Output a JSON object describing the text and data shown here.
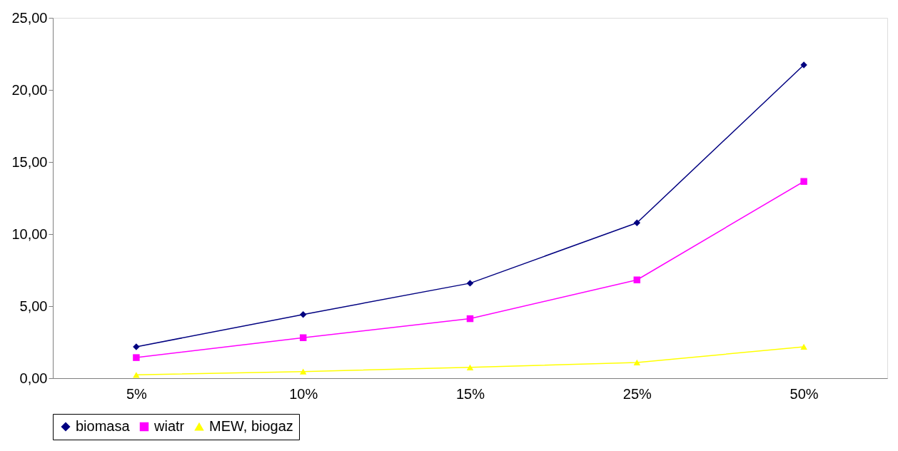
{
  "chart_data": {
    "type": "line",
    "categories": [
      "5%",
      "10%",
      "15%",
      "25%",
      "50%"
    ],
    "series": [
      {
        "name": "biomasa",
        "color": "#000080",
        "marker": "diamond",
        "values": [
          2.18,
          4.42,
          6.59,
          10.78,
          21.73
        ]
      },
      {
        "name": "wiatr",
        "color": "#ff00ff",
        "marker": "square",
        "values": [
          1.43,
          2.81,
          4.13,
          6.82,
          13.65
        ]
      },
      {
        "name": "MEW, biogaz",
        "color": "#ffff00",
        "marker": "triangle",
        "values": [
          0.23,
          0.46,
          0.75,
          1.09,
          2.18
        ]
      }
    ],
    "ylim": [
      0,
      25
    ],
    "yticks": [
      {
        "value": 0,
        "label": "0,00"
      },
      {
        "value": 5,
        "label": "5,00"
      },
      {
        "value": 10,
        "label": "10,00"
      },
      {
        "value": 15,
        "label": "15,00"
      },
      {
        "value": 20,
        "label": "20,00"
      },
      {
        "value": 25,
        "label": "25,00"
      }
    ],
    "grid": false,
    "legend": "bottom",
    "line_style": "solid"
  }
}
